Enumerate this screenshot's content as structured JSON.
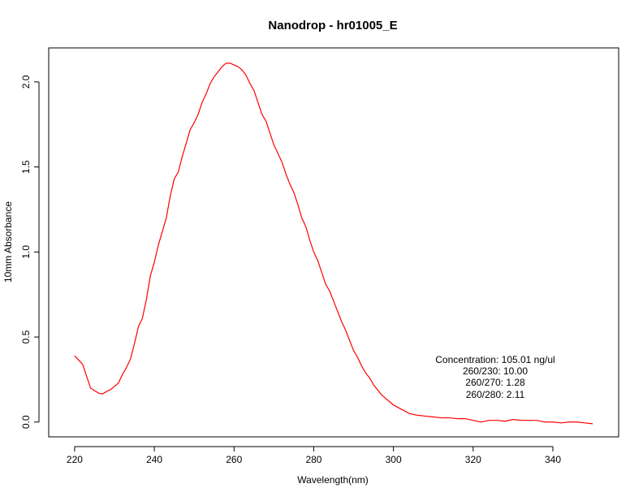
{
  "chart_data": {
    "type": "line",
    "title": "Nanodrop - hr01005_E",
    "xlabel": "Wavelength(nm)",
    "ylabel": "10mm Absorbance",
    "xlim": [
      213.5,
      356.5
    ],
    "ylim": [
      -0.087,
      2.2
    ],
    "xticks": [
      220,
      240,
      260,
      280,
      300,
      320,
      340
    ],
    "xtick_labels": [
      "220",
      "240",
      "260",
      "280",
      "300",
      "320",
      "340"
    ],
    "yticks": [
      0.0,
      0.5,
      1.0,
      1.5,
      2.0
    ],
    "ytick_labels": [
      "0.0",
      "0.5",
      "1.0",
      "1.5",
      "2.0"
    ],
    "grid": false,
    "legend": "none",
    "annotations": [
      "Concentration: 105.01 ng/ul",
      "260/230: 10.00",
      "260/270: 1.28",
      "260/280: 2.11"
    ],
    "series": [
      {
        "color": "#ff0000",
        "x": [
          220,
          222,
          224,
          226,
          227,
          228,
          229,
          230,
          231,
          232,
          233,
          234,
          235,
          236,
          237,
          238,
          239,
          240,
          241,
          242,
          243,
          244,
          245,
          246,
          247,
          248,
          249,
          250,
          251,
          252,
          253,
          254,
          255,
          256,
          257,
          258,
          259,
          260,
          261,
          262,
          263,
          264,
          265,
          266,
          267,
          268,
          269,
          270,
          271,
          272,
          273,
          274,
          275,
          276,
          277,
          278,
          279,
          280,
          281,
          282,
          283,
          284,
          285,
          286,
          287,
          288,
          289,
          290,
          291,
          292,
          293,
          294,
          295,
          296,
          297,
          298,
          299,
          300,
          302,
          304,
          306,
          308,
          310,
          312,
          314,
          316,
          318,
          320,
          322,
          324,
          326,
          328,
          330,
          332,
          334,
          336,
          338,
          340,
          342,
          344,
          346,
          348,
          350
        ],
        "y": [
          0.39,
          0.34,
          0.2,
          0.17,
          0.165,
          0.18,
          0.19,
          0.21,
          0.23,
          0.28,
          0.32,
          0.37,
          0.46,
          0.56,
          0.61,
          0.72,
          0.86,
          0.94,
          1.04,
          1.12,
          1.2,
          1.33,
          1.43,
          1.47,
          1.56,
          1.64,
          1.72,
          1.76,
          1.81,
          1.88,
          1.93,
          1.99,
          2.03,
          2.06,
          2.09,
          2.11,
          2.11,
          2.1,
          2.09,
          2.07,
          2.04,
          1.99,
          1.95,
          1.88,
          1.81,
          1.77,
          1.7,
          1.63,
          1.58,
          1.53,
          1.46,
          1.4,
          1.35,
          1.28,
          1.2,
          1.15,
          1.07,
          1.0,
          0.95,
          0.88,
          0.81,
          0.77,
          0.71,
          0.65,
          0.59,
          0.54,
          0.48,
          0.42,
          0.38,
          0.33,
          0.29,
          0.26,
          0.22,
          0.19,
          0.16,
          0.14,
          0.12,
          0.1,
          0.075,
          0.05,
          0.04,
          0.035,
          0.03,
          0.025,
          0.025,
          0.02,
          0.02,
          0.01,
          0.0,
          0.01,
          0.01,
          0.005,
          0.015,
          0.01,
          0.01,
          0.01,
          0.0,
          0.0,
          -0.005,
          0.0,
          0.0,
          -0.005,
          -0.01
        ]
      }
    ]
  }
}
